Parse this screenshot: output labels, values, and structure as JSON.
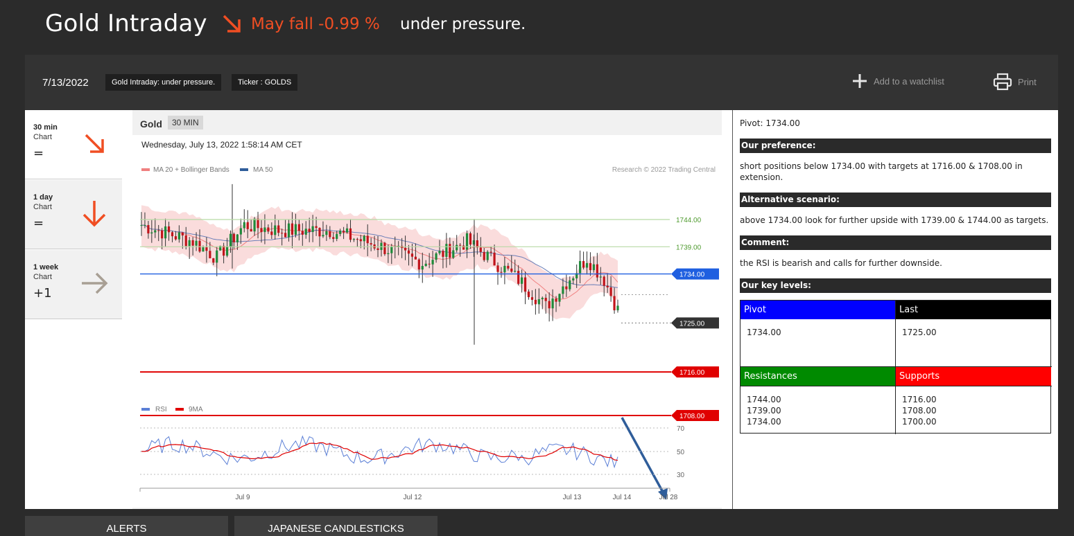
{
  "header": {
    "title": "Gold Intraday",
    "trend_text": "May fall -0.99 %",
    "subtitle": "under pressure."
  },
  "toolbar": {
    "date": "7/13/2022",
    "tags": [
      "Gold Intraday: under pressure.",
      "Ticker : GOLDS"
    ],
    "watchlist_label": "Add to a watchlist",
    "print_label": "Print"
  },
  "timeframes": [
    {
      "name": "30 min",
      "sub": "Chart",
      "value": "=",
      "arrow": "arrow-down-right-icon",
      "color": "#f04e23"
    },
    {
      "name": "1 day",
      "sub": "Chart",
      "value": "=",
      "arrow": "arrow-down-icon",
      "color": "#f04e23"
    },
    {
      "name": "1 week",
      "sub": "Chart",
      "value": "+1",
      "arrow": "arrow-right-icon",
      "color": "#a89f94"
    }
  ],
  "chart": {
    "instrument": "Gold",
    "timeframe": "30 MIN",
    "datetime": "Wednesday, July 13, 2022 1:58:14 AM CET",
    "legend": [
      "MA 20 + Bollinger Bands",
      "MA 50"
    ],
    "legend_colors": [
      "#f08080",
      "#2f5d9a"
    ],
    "copyright": "Research © 2022 Trading Central",
    "rsi_legend": [
      "RSI",
      "9MA"
    ],
    "rsi_colors": [
      "#5b7fd6",
      "#e00000"
    ]
  },
  "chart_data": {
    "type": "line",
    "price_levels": [
      {
        "value": 1744.0,
        "label": "1744.00",
        "kind": "resistance",
        "color": "#6aa84f"
      },
      {
        "value": 1739.0,
        "label": "1739.00",
        "kind": "resistance",
        "color": "#6aa84f"
      },
      {
        "value": 1734.0,
        "label": "1734.00",
        "kind": "pivot",
        "color": "#1f5fe0"
      },
      {
        "value": 1725.0,
        "label": "1725.00",
        "kind": "last",
        "color": "#333333"
      },
      {
        "value": 1716.0,
        "label": "1716.00",
        "kind": "target",
        "color": "#e00000"
      },
      {
        "value": 1708.0,
        "label": "1708.00",
        "kind": "target",
        "color": "#e00000"
      }
    ],
    "x_ticks": [
      "Jul 9",
      "Jul 12",
      "Jul 13",
      "Jul 14",
      "Jul 28"
    ],
    "rsi_ticks": [
      "70",
      "50",
      "30"
    ]
  },
  "right_panel": {
    "pivot_text": "Pivot: 1734.00",
    "preference_head": "Our preference:",
    "preference_text": "short positions below 1734.00 with targets at 1716.00 & 1708.00 in extension.",
    "alternative_head": "Alternative scenario:",
    "alternative_text": "above 1734.00 look for further upside with 1739.00 & 1744.00 as targets.",
    "comment_head": "Comment:",
    "comment_text": "the RSI is bearish and calls for further downside.",
    "levels_head": "Our key levels:",
    "levels": {
      "pivot_label": "Pivot",
      "pivot_value": "1734.00",
      "last_label": "Last",
      "last_value": "1725.00",
      "resistances_label": "Resistances",
      "resistances": [
        "1744.00",
        "1739.00",
        "1734.00"
      ],
      "supports_label": "Supports",
      "supports": [
        "1716.00",
        "1708.00",
        "1700.00"
      ]
    }
  },
  "tabs": [
    "ALERTS",
    "JAPANESE CANDLESTICKS"
  ]
}
